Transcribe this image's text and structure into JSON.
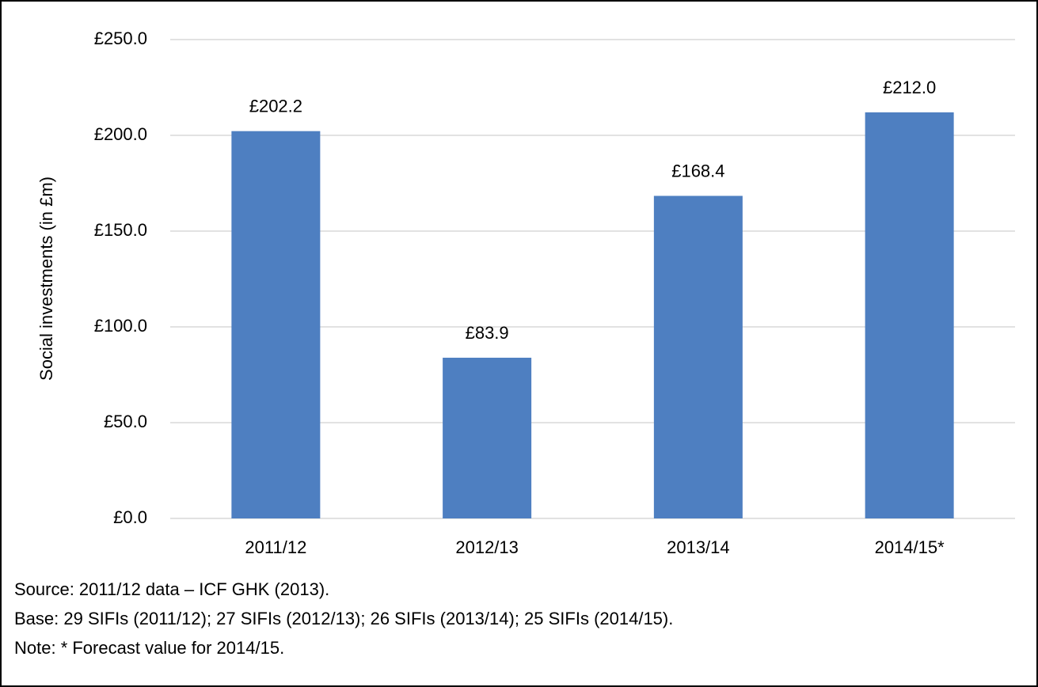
{
  "chart_data": {
    "type": "bar",
    "y_axis_label": "Social investments (in £m)",
    "categories": [
      "2011/12",
      "2012/13",
      "2013/14",
      "2014/15*"
    ],
    "values": [
      202.2,
      83.9,
      168.4,
      212.0
    ],
    "value_labels": [
      "£202.2",
      "£83.9",
      "£168.4",
      "£212.0"
    ],
    "color": "#4e7fc1",
    "ylim": [
      0,
      250
    ],
    "yticks": [
      {
        "value": 0,
        "label": "£0.0"
      },
      {
        "value": 50,
        "label": "£50.0"
      },
      {
        "value": 100,
        "label": "£100.0"
      },
      {
        "value": 150,
        "label": "£150.0"
      },
      {
        "value": 200,
        "label": "£200.0"
      },
      {
        "value": 250,
        "label": "£250.0"
      }
    ],
    "grid": true,
    "notes": [
      "Source: 2011/12 data – ICF GHK (2013).",
      "Base: 29 SIFIs (2011/12); 27 SIFIs (2012/13); 26 SIFIs (2013/14); 25 SIFIs (2014/15).",
      "Note: * Forecast value for 2014/15."
    ]
  }
}
